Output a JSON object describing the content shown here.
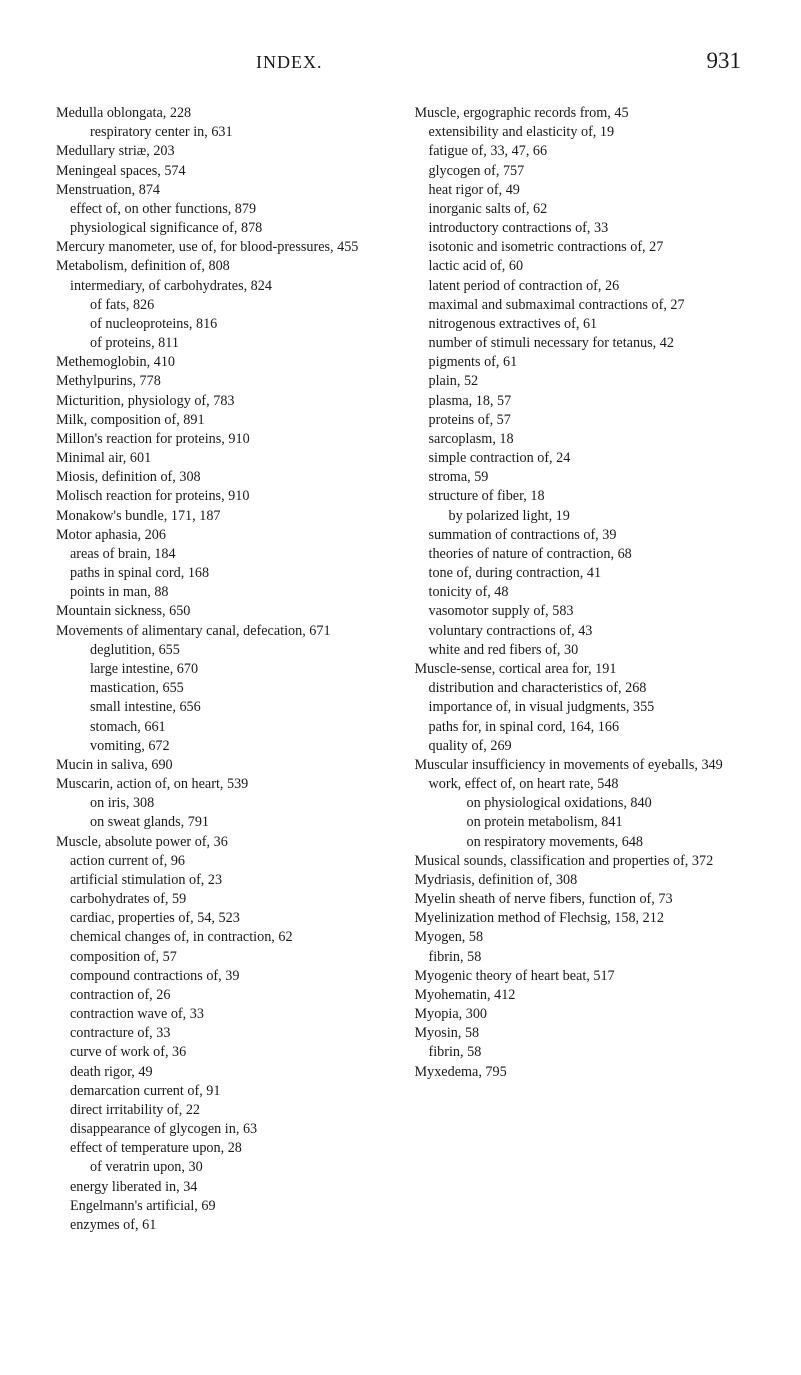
{
  "header": {
    "title": "INDEX.",
    "page_number": "931"
  },
  "left_column": [
    {
      "cls": "entry",
      "t": "Medulla oblongata, 228"
    },
    {
      "cls": "sub2",
      "t": "respiratory center in, 631"
    },
    {
      "cls": "entry",
      "t": "Medullary striæ, 203"
    },
    {
      "cls": "entry",
      "t": "Meningeal spaces, 574"
    },
    {
      "cls": "entry",
      "t": "Menstruation, 874"
    },
    {
      "cls": "sub1",
      "t": "effect of, on other functions, 879"
    },
    {
      "cls": "sub1",
      "t": "physiological significance of, 878"
    },
    {
      "cls": "entry",
      "t": "Mercury manometer, use of, for blood-pressures, 455"
    },
    {
      "cls": "entry",
      "t": "Metabolism, definition of, 808"
    },
    {
      "cls": "sub1",
      "t": "intermediary, of carbohydrates, 824"
    },
    {
      "cls": "sub2",
      "t": "of fats, 826"
    },
    {
      "cls": "sub2",
      "t": "of nucleoproteins, 816"
    },
    {
      "cls": "sub2",
      "t": "of proteins, 811"
    },
    {
      "cls": "entry",
      "t": "Methemoglobin, 410"
    },
    {
      "cls": "entry",
      "t": "Methylpurins, 778"
    },
    {
      "cls": "entry",
      "t": "Micturition, physiology of, 783"
    },
    {
      "cls": "entry",
      "t": "Milk, composition of, 891"
    },
    {
      "cls": "entry",
      "t": "Millon's reaction for proteins, 910"
    },
    {
      "cls": "entry",
      "t": "Minimal air, 601"
    },
    {
      "cls": "entry",
      "t": "Miosis, definition of, 308"
    },
    {
      "cls": "entry",
      "t": "Molisch reaction for proteins, 910"
    },
    {
      "cls": "entry",
      "t": "Monakow's bundle, 171, 187"
    },
    {
      "cls": "entry",
      "t": "Motor aphasia, 206"
    },
    {
      "cls": "sub1",
      "t": "areas of brain, 184"
    },
    {
      "cls": "sub1",
      "t": "paths in spinal cord, 168"
    },
    {
      "cls": "sub1",
      "t": "points in man, 88"
    },
    {
      "cls": "entry",
      "t": "Mountain sickness, 650"
    },
    {
      "cls": "entry",
      "t": "Movements of alimentary canal, defecation, 671"
    },
    {
      "cls": "sub2",
      "t": "deglutition, 655"
    },
    {
      "cls": "sub2",
      "t": "large intestine, 670"
    },
    {
      "cls": "sub2",
      "t": "mastication, 655"
    },
    {
      "cls": "sub2",
      "t": "small intestine, 656"
    },
    {
      "cls": "sub2",
      "t": "stomach, 661"
    },
    {
      "cls": "sub2",
      "t": "vomiting, 672"
    },
    {
      "cls": "entry",
      "t": "Mucin in saliva, 690"
    },
    {
      "cls": "entry",
      "t": "Muscarin, action of, on heart, 539"
    },
    {
      "cls": "sub2",
      "t": "on iris, 308"
    },
    {
      "cls": "sub2",
      "t": "on sweat glands, 791"
    },
    {
      "cls": "entry",
      "t": "Muscle, absolute power of, 36"
    },
    {
      "cls": "sub1",
      "t": "action current of, 96"
    },
    {
      "cls": "sub1",
      "t": "artificial stimulation of, 23"
    },
    {
      "cls": "sub1",
      "t": "carbohydrates of, 59"
    },
    {
      "cls": "sub1",
      "t": "cardiac, properties of, 54, 523"
    },
    {
      "cls": "sub1",
      "t": "chemical changes of, in contraction, 62"
    },
    {
      "cls": "sub1",
      "t": "composition of, 57"
    },
    {
      "cls": "sub1",
      "t": "compound contractions of, 39"
    },
    {
      "cls": "sub1",
      "t": "contraction of, 26"
    },
    {
      "cls": "sub1",
      "t": "contraction wave of, 33"
    },
    {
      "cls": "sub1",
      "t": "contracture of, 33"
    },
    {
      "cls": "sub1",
      "t": "curve of work of, 36"
    },
    {
      "cls": "sub1",
      "t": "death rigor, 49"
    },
    {
      "cls": "sub1",
      "t": "demarcation current of, 91"
    },
    {
      "cls": "sub1",
      "t": "direct irritability of, 22"
    },
    {
      "cls": "sub1",
      "t": "disappearance of glycogen in, 63"
    },
    {
      "cls": "sub1",
      "t": "effect of temperature upon, 28"
    },
    {
      "cls": "sub2",
      "t": "of veratrin upon, 30"
    },
    {
      "cls": "sub1",
      "t": "energy liberated in, 34"
    },
    {
      "cls": "sub1",
      "t": "Engelmann's artificial, 69"
    },
    {
      "cls": "sub1",
      "t": "enzymes of, 61"
    }
  ],
  "right_column": [
    {
      "cls": "entry",
      "t": "Muscle, ergographic records from, 45"
    },
    {
      "cls": "sub1",
      "t": "extensibility and elasticity of, 19"
    },
    {
      "cls": "sub1",
      "t": "fatigue of, 33, 47, 66"
    },
    {
      "cls": "sub1",
      "t": "glycogen of, 757"
    },
    {
      "cls": "sub1",
      "t": "heat rigor of, 49"
    },
    {
      "cls": "sub1",
      "t": "inorganic salts of, 62"
    },
    {
      "cls": "sub1",
      "t": "introductory contractions of, 33"
    },
    {
      "cls": "sub1",
      "t": "isotonic and isometric contractions of, 27"
    },
    {
      "cls": "sub1",
      "t": "lactic acid of, 60"
    },
    {
      "cls": "sub1",
      "t": "latent period of contraction of, 26"
    },
    {
      "cls": "sub1",
      "t": "maximal and submaximal contractions of, 27"
    },
    {
      "cls": "sub1",
      "t": "nitrogenous extractives of, 61"
    },
    {
      "cls": "sub1",
      "t": "number of stimuli necessary for tetanus, 42"
    },
    {
      "cls": "sub1",
      "t": "pigments of, 61"
    },
    {
      "cls": "sub1",
      "t": "plain, 52"
    },
    {
      "cls": "sub1",
      "t": "plasma, 18, 57"
    },
    {
      "cls": "sub1",
      "t": "proteins of, 57"
    },
    {
      "cls": "sub1",
      "t": "sarcoplasm, 18"
    },
    {
      "cls": "sub1",
      "t": "simple contraction of, 24"
    },
    {
      "cls": "sub1",
      "t": "stroma, 59"
    },
    {
      "cls": "sub1",
      "t": "structure of fiber, 18"
    },
    {
      "cls": "sub2",
      "t": "by polarized light, 19"
    },
    {
      "cls": "sub1",
      "t": "summation of contractions of, 39"
    },
    {
      "cls": "sub1",
      "t": "theories of nature of contraction, 68"
    },
    {
      "cls": "sub1",
      "t": "tone of, during contraction, 41"
    },
    {
      "cls": "sub1",
      "t": "tonicity of, 48"
    },
    {
      "cls": "sub1",
      "t": "vasomotor supply of, 583"
    },
    {
      "cls": "sub1",
      "t": "voluntary contractions of, 43"
    },
    {
      "cls": "sub1",
      "t": "white and red fibers of, 30"
    },
    {
      "cls": "entry",
      "t": "Muscle-sense, cortical area for, 191"
    },
    {
      "cls": "sub1",
      "t": "distribution and characteristics of, 268"
    },
    {
      "cls": "sub1",
      "t": "importance of, in visual judgments, 355"
    },
    {
      "cls": "sub1",
      "t": "paths for, in spinal cord, 164, 166"
    },
    {
      "cls": "sub1",
      "t": "quality of, 269"
    },
    {
      "cls": "entry",
      "t": "Muscular insufficiency in movements of eyeballs, 349"
    },
    {
      "cls": "sub1",
      "t": "work, effect of, on heart rate, 548"
    },
    {
      "cls": "sub3",
      "t": "on physiological oxidations, 840"
    },
    {
      "cls": "sub3",
      "t": "on protein metabolism, 841"
    },
    {
      "cls": "sub3",
      "t": "on respiratory movements, 648"
    },
    {
      "cls": "entry",
      "t": "Musical sounds, classification and properties of, 372"
    },
    {
      "cls": "entry",
      "t": "Mydriasis, definition of, 308"
    },
    {
      "cls": "entry",
      "t": "Myelin sheath of nerve fibers, function of, 73"
    },
    {
      "cls": "entry",
      "t": "Myelinization method of Flechsig, 158, 212"
    },
    {
      "cls": "entry",
      "t": "Myogen, 58"
    },
    {
      "cls": "sub1",
      "t": "fibrin, 58"
    },
    {
      "cls": "entry",
      "t": "Myogenic theory of heart beat, 517"
    },
    {
      "cls": "entry",
      "t": "Myohematin, 412"
    },
    {
      "cls": "entry",
      "t": "Myopia, 300"
    },
    {
      "cls": "entry",
      "t": "Myosin, 58"
    },
    {
      "cls": "sub1",
      "t": "fibrin, 58"
    },
    {
      "cls": "entry",
      "t": "Myxedema, 795"
    }
  ]
}
